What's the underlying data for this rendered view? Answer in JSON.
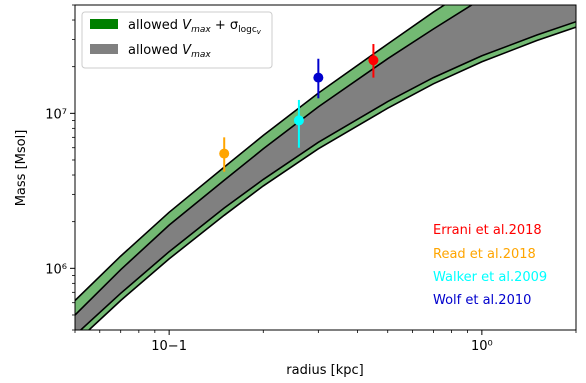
{
  "chart_data": {
    "type": "area",
    "title": "",
    "xlabel": "radius [kpc]",
    "ylabel": "Mass [Msol]",
    "x_scale": "log",
    "y_scale": "log",
    "xlim": [
      0.05,
      2.0
    ],
    "ylim": [
      400000,
      50000000
    ],
    "grid": false,
    "x_ticks": [
      {
        "value": 0.1,
        "label": "10−1"
      },
      {
        "value": 1.0,
        "label": "10⁰"
      }
    ],
    "y_ticks": [
      {
        "value": 1000000,
        "label": "10⁶"
      },
      {
        "value": 10000000,
        "label": "10⁷"
      }
    ],
    "legend": {
      "position": "top-left",
      "entries": [
        {
          "label_main": "allowed ",
          "label_var": "V",
          "label_sub": "max",
          "label_extra": " + σ",
          "label_extra_sub": "logc",
          "label_extra_subsub": "v",
          "color": "#008000"
        },
        {
          "label_main": "allowed ",
          "label_var": "V",
          "label_sub": "max",
          "label_extra": "",
          "label_extra_sub": "",
          "label_extra_subsub": "",
          "color": "#808080"
        }
      ]
    },
    "bands": [
      {
        "name": "allowed Vmax + sigma_logc",
        "color": "#008000",
        "opacity": 0.55,
        "x": [
          0.05,
          0.07,
          0.1,
          0.15,
          0.2,
          0.3,
          0.5,
          0.7,
          1.0,
          1.5,
          2.0
        ],
        "upper": [
          620000,
          1200000,
          2300000,
          4500000,
          7200000,
          13500000,
          28000000,
          45000000,
          72000000,
          120000000,
          170000000
        ],
        "lower": [
          330000,
          620000,
          1150000,
          2200000,
          3400000,
          5900000,
          10800000,
          15500000,
          21500000,
          29500000,
          36000000
        ]
      },
      {
        "name": "allowed Vmax",
        "color": "#808080",
        "opacity": 1.0,
        "x": [
          0.05,
          0.07,
          0.1,
          0.15,
          0.2,
          0.3,
          0.5,
          0.7,
          1.0,
          1.5,
          2.0
        ],
        "upper": [
          500000,
          980000,
          1900000,
          3700000,
          5900000,
          11000000,
          22500000,
          35000000,
          55000000,
          90000000,
          125000000
        ],
        "lower": [
          370000,
          690000,
          1280000,
          2450000,
          3750000,
          6500000,
          11900000,
          17000000,
          23500000,
          32000000,
          39000000
        ]
      }
    ],
    "series": [
      {
        "name": "Errani et al.2018",
        "color": "#ff0000",
        "x": [
          0.45
        ],
        "y": [
          22000000
        ],
        "yerr_low": [
          5000000
        ],
        "yerr_high": [
          6000000
        ]
      },
      {
        "name": "Read et al.2018",
        "color": "#ffa500",
        "x": [
          0.15
        ],
        "y": [
          5500000
        ],
        "yerr_low": [
          1300000
        ],
        "yerr_high": [
          1500000
        ]
      },
      {
        "name": "Walker et al.2009",
        "color": "#00ffff",
        "x": [
          0.26
        ],
        "y": [
          9000000
        ],
        "yerr_low": [
          3000000
        ],
        "yerr_high": [
          3200000
        ]
      },
      {
        "name": "Wolf et al.2010",
        "color": "#0000cd",
        "x": [
          0.3
        ],
        "y": [
          17000000
        ],
        "yerr_low": [
          4500000
        ],
        "yerr_high": [
          5500000
        ]
      }
    ],
    "annotation_position": "bottom-right"
  }
}
